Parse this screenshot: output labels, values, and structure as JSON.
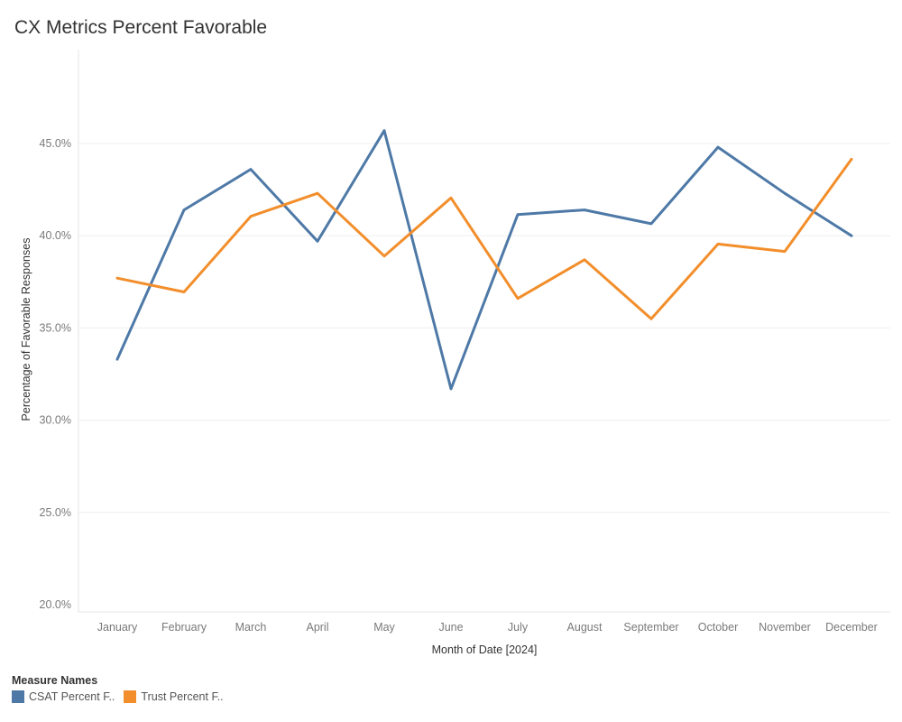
{
  "colors": {
    "csat": "#4e79a7",
    "trust": "#f28e2b"
  },
  "legend": {
    "title": "Measure Names",
    "items": [
      {
        "label": "CSAT Percent F..",
        "color": "#4e79a7"
      },
      {
        "label": "Trust Percent F..",
        "color": "#f28e2b"
      }
    ]
  },
  "chart_data": {
    "type": "line",
    "title": "CX Metrics Percent Favorable",
    "xlabel": "Month of Date [2024]",
    "ylabel": "Percentage of Favorable Responses",
    "categories": [
      "January",
      "February",
      "March",
      "April",
      "May",
      "June",
      "July",
      "August",
      "September",
      "October",
      "November",
      "December"
    ],
    "yticks": [
      "20.0%",
      "25.0%",
      "30.0%",
      "35.0%",
      "40.0%",
      "45.0%"
    ],
    "ylim": [
      0.2,
      0.5
    ],
    "grid": true,
    "legend_position": "bottom-left",
    "series": [
      {
        "name": "CSAT Percent F..",
        "color": "#4e79a7",
        "values": [
          0.333,
          0.414,
          0.436,
          0.397,
          0.457,
          0.317,
          0.4115,
          0.414,
          0.4065,
          0.448,
          0.423,
          0.4
        ]
      },
      {
        "name": "Trust Percent F..",
        "color": "#f28e2b",
        "values": [
          0.377,
          0.3695,
          0.4105,
          0.423,
          0.389,
          0.4205,
          0.366,
          0.387,
          0.355,
          0.3955,
          0.3915,
          0.4415
        ]
      }
    ]
  }
}
